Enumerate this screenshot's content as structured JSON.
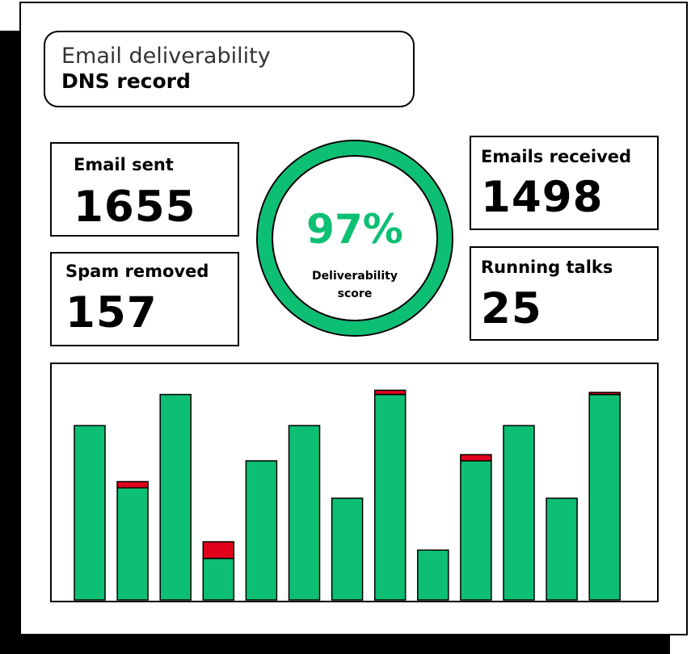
{
  "header": {
    "subtitle": "Email deliverability",
    "title": "DNS record"
  },
  "stats": {
    "email_sent": {
      "label": "Email sent",
      "value": "1655"
    },
    "spam_removed": {
      "label": "Spam removed",
      "value": "157"
    },
    "emails_received": {
      "label": "Emails received",
      "value": "1498"
    },
    "running_talks": {
      "label": "Running talks",
      "value": "25"
    }
  },
  "score": {
    "value": "97%",
    "label_line1": "Deliverability",
    "label_line2": "score",
    "fraction": 0.97
  },
  "colors": {
    "green": "#0dbf73",
    "red": "#e0001b",
    "outline": "#000000"
  },
  "chart_data": {
    "type": "bar",
    "stacked": true,
    "ylim": [
      0,
      100
    ],
    "grid": false,
    "series": [
      {
        "color": "#0dbf73",
        "values": [
          84,
          54,
          99,
          20,
          67,
          84,
          49,
          99,
          24,
          67,
          84,
          49,
          99
        ]
      },
      {
        "color": "#e0001b",
        "values": [
          0,
          3,
          0,
          8,
          0,
          0,
          0,
          2,
          0,
          3,
          0,
          0,
          1
        ]
      }
    ]
  }
}
